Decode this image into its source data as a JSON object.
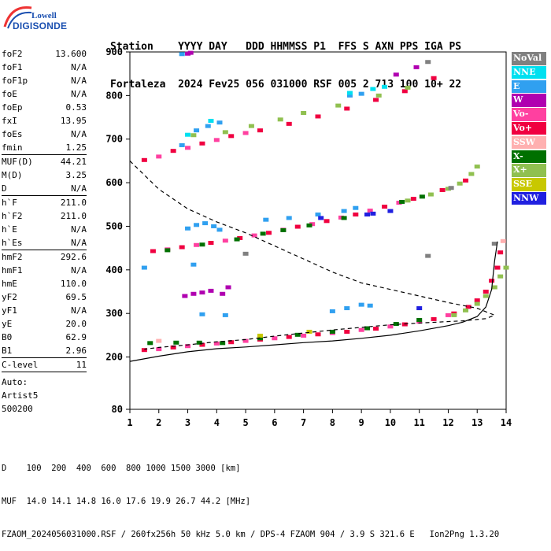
{
  "logo": {
    "line1": "Lowell",
    "line2": "DIGISONDE"
  },
  "header": {
    "line1": "Station    YYYY DAY   DDD HHMMSS P1  FFS S AXN PPS IGA PS",
    "line2": "Fortaleza  2024 Fev25 056 031000 RSF 005 2 713 100 10+ 22"
  },
  "params": {
    "group1": [
      {
        "name": "foF2",
        "value": "13.600"
      },
      {
        "name": "foF1",
        "value": "N/A"
      },
      {
        "name": "foF1p",
        "value": "N/A"
      },
      {
        "name": "foE",
        "value": "N/A"
      },
      {
        "name": "foEp",
        "value": "0.53"
      },
      {
        "name": "fxI",
        "value": "13.95"
      },
      {
        "name": "foEs",
        "value": "N/A"
      },
      {
        "name": "fmin",
        "value": "1.25"
      }
    ],
    "group2": [
      {
        "name": "MUF(D)",
        "value": "44.21"
      },
      {
        "name": "M(D)",
        "value": "3.25"
      },
      {
        "name": "D",
        "value": "N/A"
      }
    ],
    "group3": [
      {
        "name": "h`F",
        "value": "211.0"
      },
      {
        "name": "h`F2",
        "value": "211.0"
      },
      {
        "name": "h`E",
        "value": "N/A"
      },
      {
        "name": "h`Es",
        "value": "N/A"
      }
    ],
    "group4": [
      {
        "name": "hmF2",
        "value": "292.6"
      },
      {
        "name": "hmF1",
        "value": "N/A"
      },
      {
        "name": "hmE",
        "value": "110.0"
      },
      {
        "name": "yF2",
        "value": "69.5"
      },
      {
        "name": "yF1",
        "value": "N/A"
      },
      {
        "name": "yE",
        "value": "20.0"
      },
      {
        "name": "B0",
        "value": "62.9"
      },
      {
        "name": "B1",
        "value": "2.96"
      }
    ],
    "group5": [
      {
        "name": "C-level",
        "value": "11"
      }
    ],
    "auto": [
      "Auto:",
      "Artist5",
      "500200"
    ]
  },
  "legend": [
    {
      "label": "NoVal",
      "color": "#808080"
    },
    {
      "label": "NNE",
      "color": "#00e0f0"
    },
    {
      "label": "E",
      "color": "#30a0f0"
    },
    {
      "label": "W",
      "color": "#b000b0"
    },
    {
      "label": "Vo-",
      "color": "#ff40a0"
    },
    {
      "label": "Vo+",
      "color": "#f00040"
    },
    {
      "label": "SSW",
      "color": "#ffb0b0"
    },
    {
      "label": "X-",
      "color": "#007000"
    },
    {
      "label": "X+",
      "color": "#90c050"
    },
    {
      "label": "SSE",
      "color": "#c8c800"
    },
    {
      "label": "NNW",
      "color": "#2020e0"
    }
  ],
  "chart_data": {
    "type": "scatter",
    "xlim": [
      1,
      14
    ],
    "ylim": [
      80,
      900
    ],
    "x_ticks": [
      "1",
      "2",
      "3",
      "4",
      "5",
      "6",
      "7",
      "8",
      "9",
      "10",
      "11",
      "12",
      "13",
      "14"
    ],
    "y_ticks": [
      "80",
      "200",
      "300",
      "400",
      "500",
      "600",
      "700",
      "800",
      "900"
    ],
    "grid": false,
    "legend_placement": "right",
    "series": [
      {
        "name": "Vo+",
        "color": "#f00040",
        "points": [
          [
            1.5,
            216
          ],
          [
            2.5,
            222
          ],
          [
            3.5,
            228
          ],
          [
            4.5,
            234
          ],
          [
            5.5,
            240
          ],
          [
            6.5,
            246
          ],
          [
            7.5,
            252
          ],
          [
            8.5,
            258
          ],
          [
            9.5,
            265
          ],
          [
            10.5,
            275
          ],
          [
            11.5,
            287
          ],
          [
            12.2,
            300
          ],
          [
            12.7,
            315
          ],
          [
            13.0,
            330
          ],
          [
            13.3,
            350
          ],
          [
            13.5,
            375
          ],
          [
            13.7,
            405
          ],
          [
            13.8,
            440
          ],
          [
            1.8,
            443
          ],
          [
            2.8,
            452
          ],
          [
            3.8,
            462
          ],
          [
            4.8,
            473
          ],
          [
            5.8,
            485
          ],
          [
            6.8,
            499
          ],
          [
            7.8,
            512
          ],
          [
            8.8,
            527
          ],
          [
            9.8,
            545
          ],
          [
            10.8,
            563
          ],
          [
            11.8,
            583
          ],
          [
            12.6,
            605
          ],
          [
            1.5,
            652
          ],
          [
            2.5,
            673
          ],
          [
            3.5,
            690
          ],
          [
            4.5,
            707
          ],
          [
            5.5,
            720
          ],
          [
            6.5,
            735
          ],
          [
            7.5,
            752
          ],
          [
            8.5,
            770
          ],
          [
            9.5,
            790
          ],
          [
            10.5,
            810
          ],
          [
            11.5,
            840
          ]
        ]
      },
      {
        "name": "Vo-",
        "color": "#ff40a0",
        "points": [
          [
            2.0,
            218
          ],
          [
            3.0,
            225
          ],
          [
            4.0,
            231
          ],
          [
            5.0,
            237
          ],
          [
            6.0,
            243
          ],
          [
            7.0,
            249
          ],
          [
            8.0,
            255
          ],
          [
            9.0,
            262
          ],
          [
            10.0,
            270
          ],
          [
            11.0,
            281
          ],
          [
            12.0,
            296
          ],
          [
            2.3,
            447
          ],
          [
            3.3,
            457
          ],
          [
            4.3,
            467
          ],
          [
            5.3,
            479
          ],
          [
            6.3,
            492
          ],
          [
            7.3,
            505
          ],
          [
            8.3,
            520
          ],
          [
            9.3,
            536
          ],
          [
            10.3,
            554
          ],
          [
            2.0,
            660
          ],
          [
            3.0,
            680
          ],
          [
            4.0,
            698
          ],
          [
            5.0,
            714
          ]
        ]
      },
      {
        "name": "X-",
        "color": "#007000",
        "points": [
          [
            1.7,
            232
          ],
          [
            2.6,
            233
          ],
          [
            3.4,
            233
          ],
          [
            4.2,
            232
          ],
          [
            5.5,
            243
          ],
          [
            6.8,
            251
          ],
          [
            8.0,
            258
          ],
          [
            9.2,
            266
          ],
          [
            10.2,
            276
          ],
          [
            11.0,
            285
          ],
          [
            2.3,
            445
          ],
          [
            3.5,
            458
          ],
          [
            4.7,
            470
          ],
          [
            5.6,
            483
          ],
          [
            6.3,
            491
          ],
          [
            7.2,
            502
          ],
          [
            8.4,
            519
          ],
          [
            10.4,
            556
          ],
          [
            11.1,
            568
          ]
        ]
      },
      {
        "name": "X+",
        "color": "#90c050",
        "points": [
          [
            12.2,
            296
          ],
          [
            12.6,
            307
          ],
          [
            13.0,
            322
          ],
          [
            13.3,
            340
          ],
          [
            13.6,
            360
          ],
          [
            13.8,
            385
          ],
          [
            14.0,
            405
          ],
          [
            10.6,
            559
          ],
          [
            11.4,
            573
          ],
          [
            12.0,
            586
          ],
          [
            12.4,
            598
          ],
          [
            12.8,
            620
          ],
          [
            13.0,
            637
          ],
          [
            3.2,
            709
          ],
          [
            4.3,
            716
          ],
          [
            5.2,
            730
          ],
          [
            6.2,
            745
          ],
          [
            7.0,
            760
          ],
          [
            8.2,
            777
          ],
          [
            9.6,
            800
          ],
          [
            10.6,
            818
          ]
        ]
      },
      {
        "name": "E",
        "color": "#30a0f0",
        "points": [
          [
            3.0,
            495
          ],
          [
            3.3,
            503
          ],
          [
            3.6,
            507
          ],
          [
            3.9,
            500
          ],
          [
            4.1,
            492
          ],
          [
            5.7,
            515
          ],
          [
            6.5,
            519
          ],
          [
            7.5,
            527
          ],
          [
            8.4,
            535
          ],
          [
            8.8,
            542
          ],
          [
            9.3,
            318
          ],
          [
            9.0,
            320
          ],
          [
            8.5,
            312
          ],
          [
            8.0,
            305
          ],
          [
            3.5,
            298
          ],
          [
            4.3,
            296
          ],
          [
            2.8,
            686
          ],
          [
            3.3,
            720
          ],
          [
            3.7,
            730
          ],
          [
            4.1,
            738
          ],
          [
            8.6,
            800
          ],
          [
            9.0,
            804
          ],
          [
            2.8,
            895
          ],
          [
            1.5,
            405
          ],
          [
            3.2,
            412
          ]
        ]
      },
      {
        "name": "NNE",
        "color": "#00e0f0",
        "points": [
          [
            3.0,
            710
          ],
          [
            3.8,
            742
          ],
          [
            8.6,
            806
          ],
          [
            9.4,
            815
          ],
          [
            9.8,
            820
          ]
        ]
      },
      {
        "name": "W",
        "color": "#b000b0",
        "points": [
          [
            2.9,
            340
          ],
          [
            3.2,
            345
          ],
          [
            3.5,
            348
          ],
          [
            3.8,
            352
          ],
          [
            4.2,
            345
          ],
          [
            4.4,
            360
          ],
          [
            10.2,
            848
          ],
          [
            10.9,
            865
          ],
          [
            3.0,
            896
          ],
          [
            3.1,
            898
          ]
        ]
      },
      {
        "name": "NNW",
        "color": "#2020e0",
        "points": [
          [
            9.2,
            527
          ],
          [
            9.4,
            529
          ],
          [
            10.0,
            535
          ],
          [
            11.0,
            312
          ],
          [
            7.6,
            519
          ]
        ]
      },
      {
        "name": "NoVal",
        "color": "#808080",
        "points": [
          [
            11.3,
            877
          ],
          [
            12.1,
            588
          ],
          [
            5.0,
            437
          ],
          [
            11.3,
            432
          ],
          [
            13.6,
            460
          ]
        ]
      },
      {
        "name": "SSE",
        "color": "#c8c800",
        "points": [
          [
            5.5,
            249
          ],
          [
            7.2,
            258
          ]
        ]
      },
      {
        "name": "SSW",
        "color": "#ffb0b0",
        "points": [
          [
            2.0,
            237
          ],
          [
            13.9,
            466
          ]
        ]
      }
    ],
    "profile_solid": [
      [
        1,
        190
      ],
      [
        2,
        202
      ],
      [
        3,
        212
      ],
      [
        4,
        219
      ],
      [
        5,
        223
      ],
      [
        6,
        228
      ],
      [
        7,
        233
      ],
      [
        8,
        237
      ],
      [
        9,
        243
      ],
      [
        10,
        250
      ],
      [
        11,
        260
      ],
      [
        12,
        272
      ],
      [
        12.5,
        280
      ],
      [
        13,
        293
      ],
      [
        13.3,
        315
      ],
      [
        13.5,
        355
      ],
      [
        13.6,
        420
      ],
      [
        13.7,
        465
      ]
    ],
    "profile_dashed": [
      [
        1,
        650
      ],
      [
        2,
        585
      ],
      [
        3,
        540
      ],
      [
        4,
        510
      ],
      [
        5,
        485
      ],
      [
        6,
        455
      ],
      [
        7,
        425
      ],
      [
        8,
        395
      ],
      [
        9,
        370
      ],
      [
        10,
        355
      ],
      [
        11,
        340
      ],
      [
        12,
        325
      ],
      [
        13,
        312
      ],
      [
        13.6,
        296
      ],
      [
        13.3,
        288
      ],
      [
        12.5,
        283
      ],
      [
        11,
        278
      ],
      [
        10,
        274
      ],
      [
        9,
        268
      ],
      [
        8,
        262
      ],
      [
        7,
        255
      ],
      [
        6,
        248
      ],
      [
        5,
        240
      ],
      [
        4,
        235
      ],
      [
        3,
        228
      ],
      [
        2,
        222
      ],
      [
        1.5,
        218
      ]
    ]
  },
  "footer": {
    "line1": "D    100  200  400  600  800 1000 1500 3000 [km]",
    "line2": "MUF  14.0 14.1 14.8 16.0 17.6 19.9 26.7 44.2 [MHz]",
    "line3": "FZAOM_2024056031000.RSF / 260fx256h 50 kHz 5.0 km / DPS-4 FZAOM 904 / 3.9 S 321.6 E   Ion2Png 1.3.20"
  }
}
